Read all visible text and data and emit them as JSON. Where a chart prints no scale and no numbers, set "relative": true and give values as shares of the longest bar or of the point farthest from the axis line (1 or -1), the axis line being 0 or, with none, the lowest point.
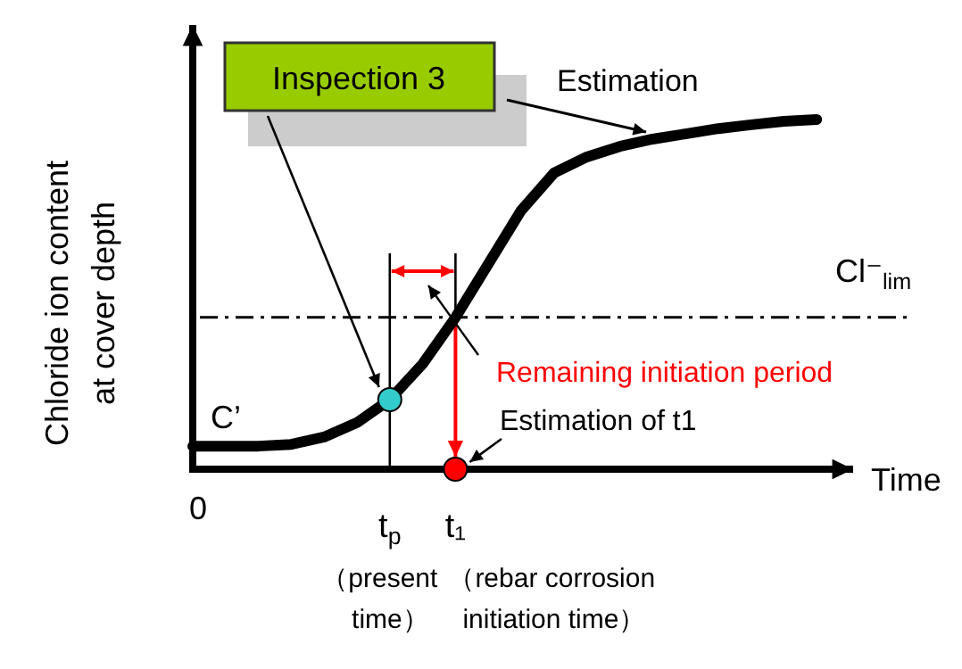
{
  "chart_data": {
    "type": "line",
    "relative": true,
    "xlabel": "Time",
    "ylabel": "Chloride ion content at cover depth",
    "categories": [
      "0",
      null,
      null,
      null,
      null,
      null,
      "t$_{p}$",
      null,
      "t₁",
      null,
      null,
      null,
      null,
      null,
      null,
      null,
      null,
      null,
      null,
      null
    ],
    "series": [
      {
        "color": "#000000",
        "marker": "none",
        "values": [
          0.066,
          0.066,
          0.066,
          0.071,
          0.092,
          0.133,
          0.199,
          0.301,
          0.434,
          0.587,
          0.74,
          0.847,
          0.893,
          0.923,
          0.944,
          0.959,
          0.974,
          0.985,
          0.995,
          1
        ]
      },
      {
        "type": "scatter",
        "color": "#33cccc",
        "marker": "circle",
        "x": [
          "t$_{p}$"
        ],
        "values": [
          0.199
        ]
      },
      {
        "type": "scatter",
        "color": "#ff0000",
        "marker": "circle",
        "x": [
          "t₁"
        ],
        "values": [
          0
        ]
      }
    ],
    "ref_lines": [
      {
        "axis": "y",
        "value": 0.434,
        "label": "Cl⁻$_{lim}$",
        "color": "#000000",
        "line_style": "dashdot"
      }
    ],
    "annotations": [
      "Inspection 3",
      "Estimation",
      "C’",
      "Remaining initiation period",
      "Estimation of t1",
      "（present time）",
      "（rebar corrosion initiation time）"
    ],
    "grid": false
  }
}
